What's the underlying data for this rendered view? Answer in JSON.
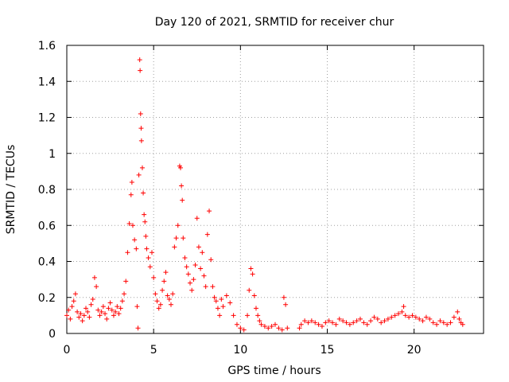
{
  "chart_data": {
    "type": "scatter",
    "title": "Day 120 of 2021, SRMTID for receiver chur",
    "xlabel": "GPS time / hours",
    "ylabel": "SRMTID / TECUs",
    "xlim": [
      0,
      24
    ],
    "ylim": [
      0,
      1.6
    ],
    "xticks": [
      0,
      5,
      10,
      15,
      20
    ],
    "xtick_labels": [
      "0",
      "5",
      "10",
      "15",
      "20"
    ],
    "yticks": [
      0,
      0.2,
      0.4,
      0.6,
      0.8,
      1,
      1.2,
      1.4,
      1.6
    ],
    "ytick_labels": [
      "0",
      "0.2",
      "0.4",
      "0.6",
      "0.8",
      "1",
      "1.2",
      "1.4",
      "1.6"
    ],
    "grid": true,
    "marker": "plus",
    "color": "#ff0000",
    "series": [
      {
        "name": "SRMTID",
        "points": [
          [
            0.0,
            0.1
          ],
          [
            0.1,
            0.13
          ],
          [
            0.2,
            0.08
          ],
          [
            0.3,
            0.15
          ],
          [
            0.4,
            0.18
          ],
          [
            0.5,
            0.22
          ],
          [
            0.6,
            0.12
          ],
          [
            0.7,
            0.09
          ],
          [
            0.8,
            0.11
          ],
          [
            0.9,
            0.07
          ],
          [
            1.0,
            0.1
          ],
          [
            1.1,
            0.14
          ],
          [
            1.2,
            0.12
          ],
          [
            1.3,
            0.09
          ],
          [
            1.4,
            0.16
          ],
          [
            1.5,
            0.19
          ],
          [
            1.6,
            0.31
          ],
          [
            1.7,
            0.26
          ],
          [
            1.8,
            0.13
          ],
          [
            1.9,
            0.1
          ],
          [
            2.0,
            0.12
          ],
          [
            2.1,
            0.15
          ],
          [
            2.2,
            0.11
          ],
          [
            2.3,
            0.08
          ],
          [
            2.4,
            0.14
          ],
          [
            2.5,
            0.17
          ],
          [
            2.6,
            0.13
          ],
          [
            2.7,
            0.1
          ],
          [
            2.8,
            0.12
          ],
          [
            2.9,
            0.15
          ],
          [
            3.0,
            0.11
          ],
          [
            3.1,
            0.14
          ],
          [
            3.2,
            0.18
          ],
          [
            3.3,
            0.22
          ],
          [
            3.4,
            0.29
          ],
          [
            3.5,
            0.45
          ],
          [
            3.6,
            0.61
          ],
          [
            3.7,
            0.77
          ],
          [
            3.75,
            0.84
          ],
          [
            3.8,
            0.6
          ],
          [
            3.9,
            0.52
          ],
          [
            4.0,
            0.47
          ],
          [
            4.05,
            0.15
          ],
          [
            4.1,
            0.03
          ],
          [
            4.15,
            0.88
          ],
          [
            4.2,
            1.52
          ],
          [
            4.22,
            1.46
          ],
          [
            4.25,
            1.22
          ],
          [
            4.28,
            1.14
          ],
          [
            4.3,
            1.07
          ],
          [
            4.35,
            0.92
          ],
          [
            4.4,
            0.78
          ],
          [
            4.45,
            0.66
          ],
          [
            4.5,
            0.62
          ],
          [
            4.55,
            0.54
          ],
          [
            4.6,
            0.47
          ],
          [
            4.7,
            0.42
          ],
          [
            4.8,
            0.37
          ],
          [
            4.9,
            0.45
          ],
          [
            5.0,
            0.31
          ],
          [
            5.1,
            0.22
          ],
          [
            5.2,
            0.18
          ],
          [
            5.3,
            0.14
          ],
          [
            5.4,
            0.16
          ],
          [
            5.5,
            0.24
          ],
          [
            5.6,
            0.29
          ],
          [
            5.7,
            0.34
          ],
          [
            5.8,
            0.21
          ],
          [
            5.9,
            0.19
          ],
          [
            6.0,
            0.16
          ],
          [
            6.1,
            0.22
          ],
          [
            6.2,
            0.48
          ],
          [
            6.3,
            0.53
          ],
          [
            6.4,
            0.6
          ],
          [
            6.5,
            0.93
          ],
          [
            6.55,
            0.92
          ],
          [
            6.6,
            0.82
          ],
          [
            6.65,
            0.74
          ],
          [
            6.7,
            0.53
          ],
          [
            6.8,
            0.42
          ],
          [
            6.9,
            0.37
          ],
          [
            7.0,
            0.33
          ],
          [
            7.1,
            0.28
          ],
          [
            7.2,
            0.24
          ],
          [
            7.3,
            0.3
          ],
          [
            7.4,
            0.38
          ],
          [
            7.5,
            0.64
          ],
          [
            7.6,
            0.48
          ],
          [
            7.7,
            0.36
          ],
          [
            7.8,
            0.45
          ],
          [
            7.9,
            0.32
          ],
          [
            8.0,
            0.26
          ],
          [
            8.1,
            0.55
          ],
          [
            8.2,
            0.68
          ],
          [
            8.3,
            0.41
          ],
          [
            8.4,
            0.26
          ],
          [
            8.5,
            0.2
          ],
          [
            8.6,
            0.18
          ],
          [
            8.7,
            0.14
          ],
          [
            8.8,
            0.1
          ],
          [
            8.9,
            0.19
          ],
          [
            9.0,
            0.15
          ],
          [
            9.2,
            0.21
          ],
          [
            9.4,
            0.17
          ],
          [
            9.6,
            0.1
          ],
          [
            9.8,
            0.05
          ],
          [
            10.0,
            0.03
          ],
          [
            10.2,
            0.02
          ],
          [
            10.4,
            0.1
          ],
          [
            10.5,
            0.24
          ],
          [
            10.6,
            0.36
          ],
          [
            10.7,
            0.33
          ],
          [
            10.8,
            0.21
          ],
          [
            10.9,
            0.14
          ],
          [
            11.0,
            0.1
          ],
          [
            11.1,
            0.07
          ],
          [
            11.2,
            0.05
          ],
          [
            11.4,
            0.04
          ],
          [
            11.6,
            0.03
          ],
          [
            11.8,
            0.04
          ],
          [
            12.0,
            0.05
          ],
          [
            12.2,
            0.03
          ],
          [
            12.4,
            0.02
          ],
          [
            12.5,
            0.2
          ],
          [
            12.6,
            0.16
          ],
          [
            12.7,
            0.03
          ],
          [
            13.4,
            0.03
          ],
          [
            13.5,
            0.05
          ],
          [
            13.7,
            0.07
          ],
          [
            13.9,
            0.06
          ],
          [
            14.1,
            0.07
          ],
          [
            14.3,
            0.06
          ],
          [
            14.5,
            0.05
          ],
          [
            14.7,
            0.04
          ],
          [
            14.9,
            0.06
          ],
          [
            15.1,
            0.07
          ],
          [
            15.3,
            0.06
          ],
          [
            15.5,
            0.05
          ],
          [
            15.7,
            0.08
          ],
          [
            15.9,
            0.07
          ],
          [
            16.1,
            0.06
          ],
          [
            16.3,
            0.05
          ],
          [
            16.5,
            0.06
          ],
          [
            16.7,
            0.07
          ],
          [
            16.9,
            0.08
          ],
          [
            17.1,
            0.06
          ],
          [
            17.3,
            0.05
          ],
          [
            17.5,
            0.07
          ],
          [
            17.7,
            0.09
          ],
          [
            17.9,
            0.08
          ],
          [
            18.1,
            0.06
          ],
          [
            18.3,
            0.07
          ],
          [
            18.5,
            0.08
          ],
          [
            18.7,
            0.09
          ],
          [
            18.9,
            0.1
          ],
          [
            19.1,
            0.11
          ],
          [
            19.3,
            0.12
          ],
          [
            19.4,
            0.15
          ],
          [
            19.5,
            0.1
          ],
          [
            19.7,
            0.09
          ],
          [
            19.9,
            0.1
          ],
          [
            20.1,
            0.09
          ],
          [
            20.3,
            0.08
          ],
          [
            20.5,
            0.07
          ],
          [
            20.7,
            0.09
          ],
          [
            20.9,
            0.08
          ],
          [
            21.1,
            0.06
          ],
          [
            21.3,
            0.05
          ],
          [
            21.5,
            0.07
          ],
          [
            21.7,
            0.06
          ],
          [
            21.9,
            0.05
          ],
          [
            22.1,
            0.06
          ],
          [
            22.3,
            0.09
          ],
          [
            22.5,
            0.12
          ],
          [
            22.6,
            0.08
          ],
          [
            22.7,
            0.06
          ],
          [
            22.8,
            0.05
          ]
        ]
      }
    ]
  }
}
